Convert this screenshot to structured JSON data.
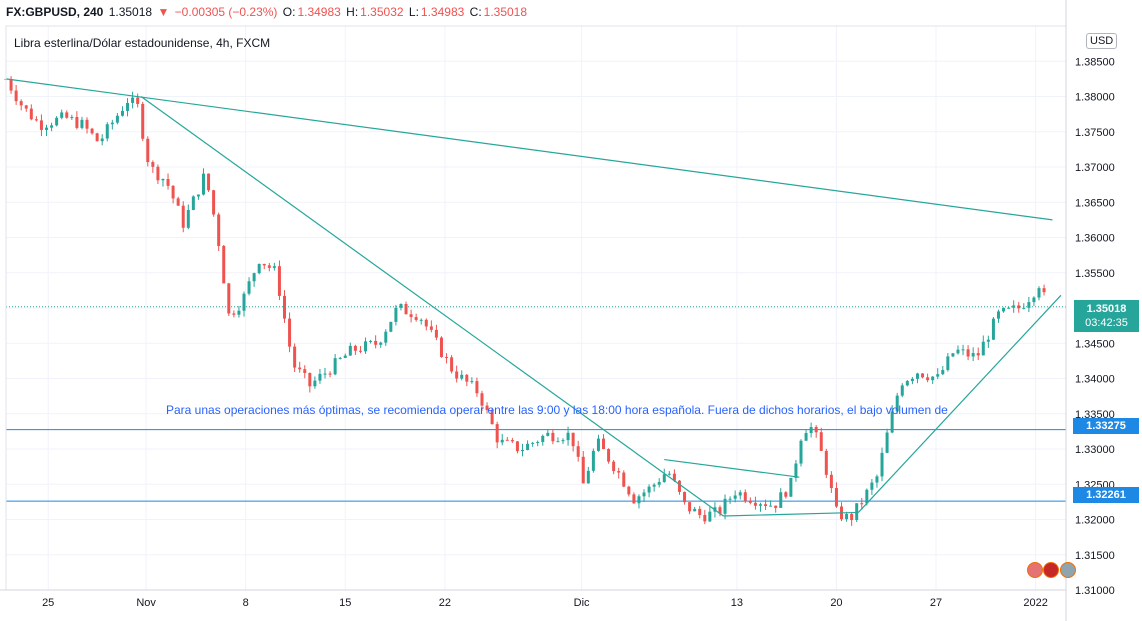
{
  "header": {
    "symbol": "FX:GBPUSD, 240",
    "price": "1.35018",
    "change_arrow": "▼",
    "change": "−0.00305 (−0.23%)",
    "o_label": "O:",
    "o_value": "1.34983",
    "h_label": "H:",
    "h_value": "1.35032",
    "l_label": "L:",
    "l_value": "1.34983",
    "c_label": "C:",
    "c_value": "1.35018"
  },
  "subtitle": "Libra esterlina/Dólar estadounidense, 4h, FXCM",
  "currency_button": "USD",
  "annotation": "Para unas operaciones más óptimas, se recomienda operar entre las 9:00 y las 18:00 hora española. Fuera de dichos horarios, el bajo volumen de",
  "price_label": {
    "value": "1.35018",
    "countdown": "03:42:35"
  },
  "hlines": [
    {
      "value": "1.33275"
    },
    {
      "value": "1.32261"
    }
  ],
  "colors": {
    "up": "#26a69a",
    "down": "#ef5350",
    "trendline": "#26a69a",
    "hline": "#1e88e5",
    "annotation": "#2962ff"
  },
  "chart_data": {
    "type": "candlestick",
    "timeframe": "4h",
    "ylim": [
      1.31,
      1.39
    ],
    "y_ticks": [
      "1.31000",
      "1.31500",
      "1.32000",
      "1.32500",
      "1.33000",
      "1.33500",
      "1.34000",
      "1.34500",
      "1.35000",
      "1.35500",
      "1.36000",
      "1.36500",
      "1.37000",
      "1.37500",
      "1.38000",
      "1.38500"
    ],
    "x_ticks": [
      "25",
      "Nov",
      "8",
      "15",
      "22",
      "Dic",
      "13",
      "20",
      "27",
      "2022"
    ],
    "x_tick_bar_index": [
      25,
      83,
      142,
      201,
      260,
      341,
      433,
      492,
      551,
      610
    ],
    "approx_close_path": [
      {
        "bar": 0,
        "price": 1.3825
      },
      {
        "bar": 10,
        "price": 1.3785
      },
      {
        "bar": 20,
        "price": 1.376
      },
      {
        "bar": 35,
        "price": 1.377
      },
      {
        "bar": 45,
        "price": 1.376
      },
      {
        "bar": 55,
        "price": 1.3735
      },
      {
        "bar": 65,
        "price": 1.377
      },
      {
        "bar": 72,
        "price": 1.3795
      },
      {
        "bar": 78,
        "price": 1.3785
      },
      {
        "bar": 85,
        "price": 1.37
      },
      {
        "bar": 95,
        "price": 1.368
      },
      {
        "bar": 105,
        "price": 1.362
      },
      {
        "bar": 118,
        "price": 1.369
      },
      {
        "bar": 125,
        "price": 1.361
      },
      {
        "bar": 132,
        "price": 1.349
      },
      {
        "bar": 140,
        "price": 1.351
      },
      {
        "bar": 150,
        "price": 1.357
      },
      {
        "bar": 160,
        "price": 1.355
      },
      {
        "bar": 170,
        "price": 1.342
      },
      {
        "bar": 180,
        "price": 1.339
      },
      {
        "bar": 190,
        "price": 1.341
      },
      {
        "bar": 205,
        "price": 1.344
      },
      {
        "bar": 220,
        "price": 1.345
      },
      {
        "bar": 232,
        "price": 1.35
      },
      {
        "bar": 245,
        "price": 1.349
      },
      {
        "bar": 255,
        "price": 1.345
      },
      {
        "bar": 265,
        "price": 1.341
      },
      {
        "bar": 280,
        "price": 1.338
      },
      {
        "bar": 292,
        "price": 1.331
      },
      {
        "bar": 305,
        "price": 1.33
      },
      {
        "bar": 320,
        "price": 1.332
      },
      {
        "bar": 335,
        "price": 1.332
      },
      {
        "bar": 342,
        "price": 1.325
      },
      {
        "bar": 350,
        "price": 1.331
      },
      {
        "bar": 362,
        "price": 1.327
      },
      {
        "bar": 372,
        "price": 1.323
      },
      {
        "bar": 382,
        "price": 1.3245
      },
      {
        "bar": 392,
        "price": 1.327
      },
      {
        "bar": 402,
        "price": 1.322
      },
      {
        "bar": 412,
        "price": 1.3205
      },
      {
        "bar": 422,
        "price": 1.321
      },
      {
        "bar": 432,
        "price": 1.324
      },
      {
        "bar": 442,
        "price": 1.323
      },
      {
        "bar": 455,
        "price": 1.322
      },
      {
        "bar": 465,
        "price": 1.325
      },
      {
        "bar": 472,
        "price": 1.333
      },
      {
        "bar": 478,
        "price": 1.333
      },
      {
        "bar": 485,
        "price": 1.328
      },
      {
        "bar": 492,
        "price": 1.321
      },
      {
        "bar": 500,
        "price": 1.32
      },
      {
        "bar": 508,
        "price": 1.323
      },
      {
        "bar": 516,
        "price": 1.326
      },
      {
        "bar": 522,
        "price": 1.332
      },
      {
        "bar": 530,
        "price": 1.3395
      },
      {
        "bar": 540,
        "price": 1.341
      },
      {
        "bar": 552,
        "price": 1.34
      },
      {
        "bar": 562,
        "price": 1.344
      },
      {
        "bar": 575,
        "price": 1.343
      },
      {
        "bar": 588,
        "price": 1.349
      },
      {
        "bar": 600,
        "price": 1.35
      },
      {
        "bar": 608,
        "price": 1.352
      },
      {
        "bar": 612,
        "price": 1.3535
      },
      {
        "bar": 617,
        "price": 1.3502
      }
    ],
    "trendlines": [
      {
        "from": {
          "bar": 0,
          "price": 1.3825
        },
        "to": {
          "bar": 620,
          "price": 1.3625
        }
      },
      {
        "from": {
          "bar": 80,
          "price": 1.38
        },
        "to": {
          "bar": 425,
          "price": 1.3205
        }
      },
      {
        "from": {
          "bar": 390,
          "price": 1.3285
        },
        "to": {
          "bar": 470,
          "price": 1.326
        }
      },
      {
        "from": {
          "bar": 425,
          "price": 1.3205
        },
        "to": {
          "bar": 505,
          "price": 1.321
        }
      },
      {
        "from": {
          "bar": 505,
          "price": 1.321
        },
        "to": {
          "bar": 625,
          "price": 1.3518
        }
      }
    ],
    "horizontal_lines": [
      1.33275,
      1.32261
    ],
    "last_price": 1.35018
  }
}
